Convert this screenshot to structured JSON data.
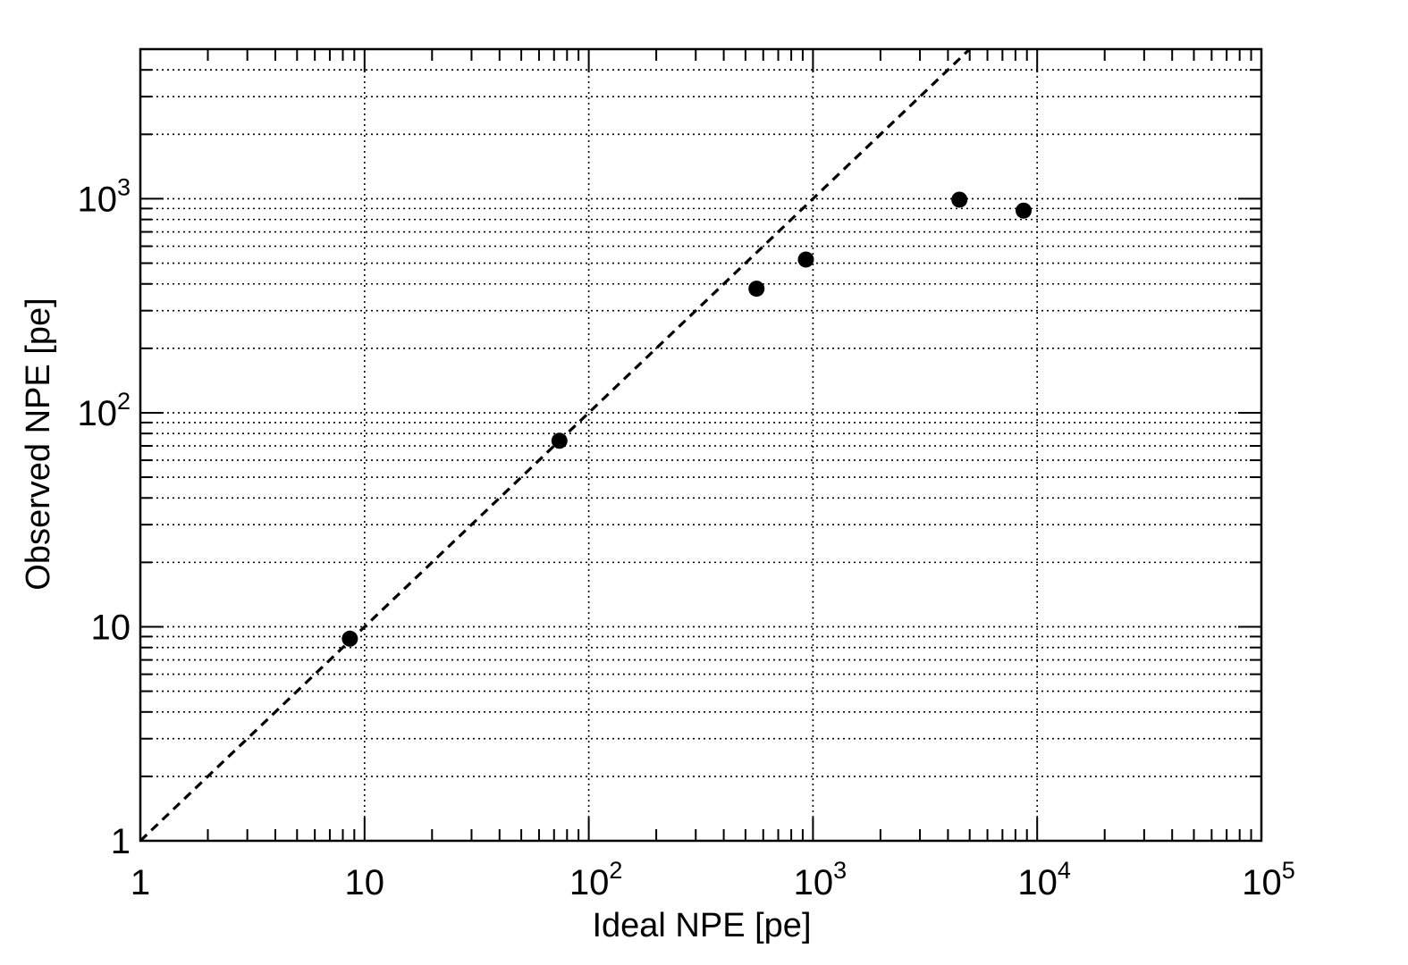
{
  "chart_data": {
    "type": "scatter",
    "title": "",
    "xlabel": "Ideal NPE [pe]",
    "ylabel": "Observed NPE [pe]",
    "xscale": "log",
    "yscale": "log",
    "xlim": [
      1,
      100000
    ],
    "ylim": [
      1,
      5000
    ],
    "grid": true,
    "legend": "none",
    "x_ticks": [
      {
        "value": 1,
        "base": "1",
        "exp": ""
      },
      {
        "value": 10,
        "base": "10",
        "exp": ""
      },
      {
        "value": 100,
        "base": "10",
        "exp": "2"
      },
      {
        "value": 1000,
        "base": "10",
        "exp": "3"
      },
      {
        "value": 10000,
        "base": "10",
        "exp": "4"
      },
      {
        "value": 100000,
        "base": "10",
        "exp": "5"
      }
    ],
    "y_ticks": [
      {
        "value": 1,
        "base": "1",
        "exp": ""
      },
      {
        "value": 10,
        "base": "10",
        "exp": ""
      },
      {
        "value": 100,
        "base": "10",
        "exp": "2"
      },
      {
        "value": 1000,
        "base": "10",
        "exp": "3"
      }
    ],
    "series": [
      {
        "points": [
          {
            "x": 8.6,
            "y": 8.8
          },
          {
            "x": 74,
            "y": 74
          },
          {
            "x": 560,
            "y": 380
          },
          {
            "x": 930,
            "y": 520
          },
          {
            "x": 4500,
            "y": 990
          },
          {
            "x": 8700,
            "y": 880
          }
        ],
        "color": "#000000",
        "marker": "filled-circle"
      }
    ],
    "reference_line": {
      "style": "dashed",
      "color": "#000000",
      "from": [
        1,
        1
      ],
      "to": [
        5000,
        5000
      ]
    }
  }
}
